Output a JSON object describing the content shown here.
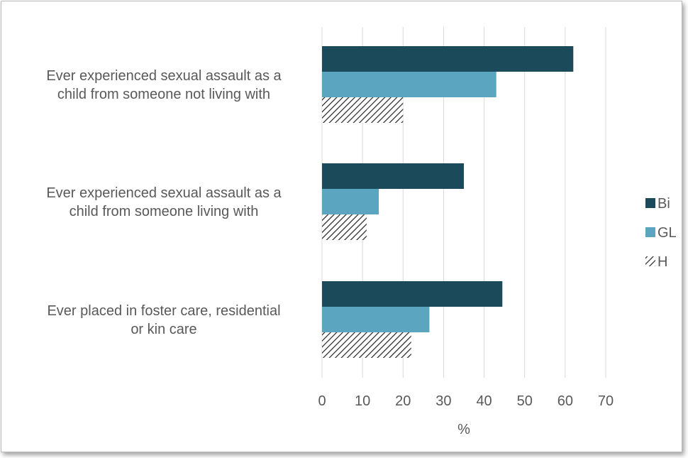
{
  "chart_data": {
    "type": "bar",
    "orientation": "horizontal",
    "categories": [
      "Ever experienced sexual assault as a child from someone not living with",
      "Ever experienced sexual assault as a child from someone living with",
      "Ever placed in foster care, residential or kin care"
    ],
    "category_lines": [
      [
        "Ever experienced sexual assault as a",
        "child from someone not living with"
      ],
      [
        "Ever experienced sexual assault as a",
        "child from someone living with"
      ],
      [
        "Ever placed in foster care, residential",
        "or kin care"
      ]
    ],
    "series": [
      {
        "name": "Bi",
        "values": [
          62,
          35,
          44.5
        ],
        "color": "#1b4a5a",
        "pattern": "solid"
      },
      {
        "name": "GL",
        "values": [
          43,
          14,
          26.5
        ],
        "color": "#5ba5c0",
        "pattern": "solid"
      },
      {
        "name": "H",
        "values": [
          20,
          11,
          22
        ],
        "color": "#222222",
        "pattern": "diagonal-hatch"
      }
    ],
    "xlabel": "%",
    "ylabel": "",
    "xlim": [
      0,
      70
    ],
    "xticks": [
      "0",
      "10",
      "20",
      "30",
      "40",
      "50",
      "60",
      "70"
    ],
    "grid": "vertical",
    "legend_position": "right"
  }
}
